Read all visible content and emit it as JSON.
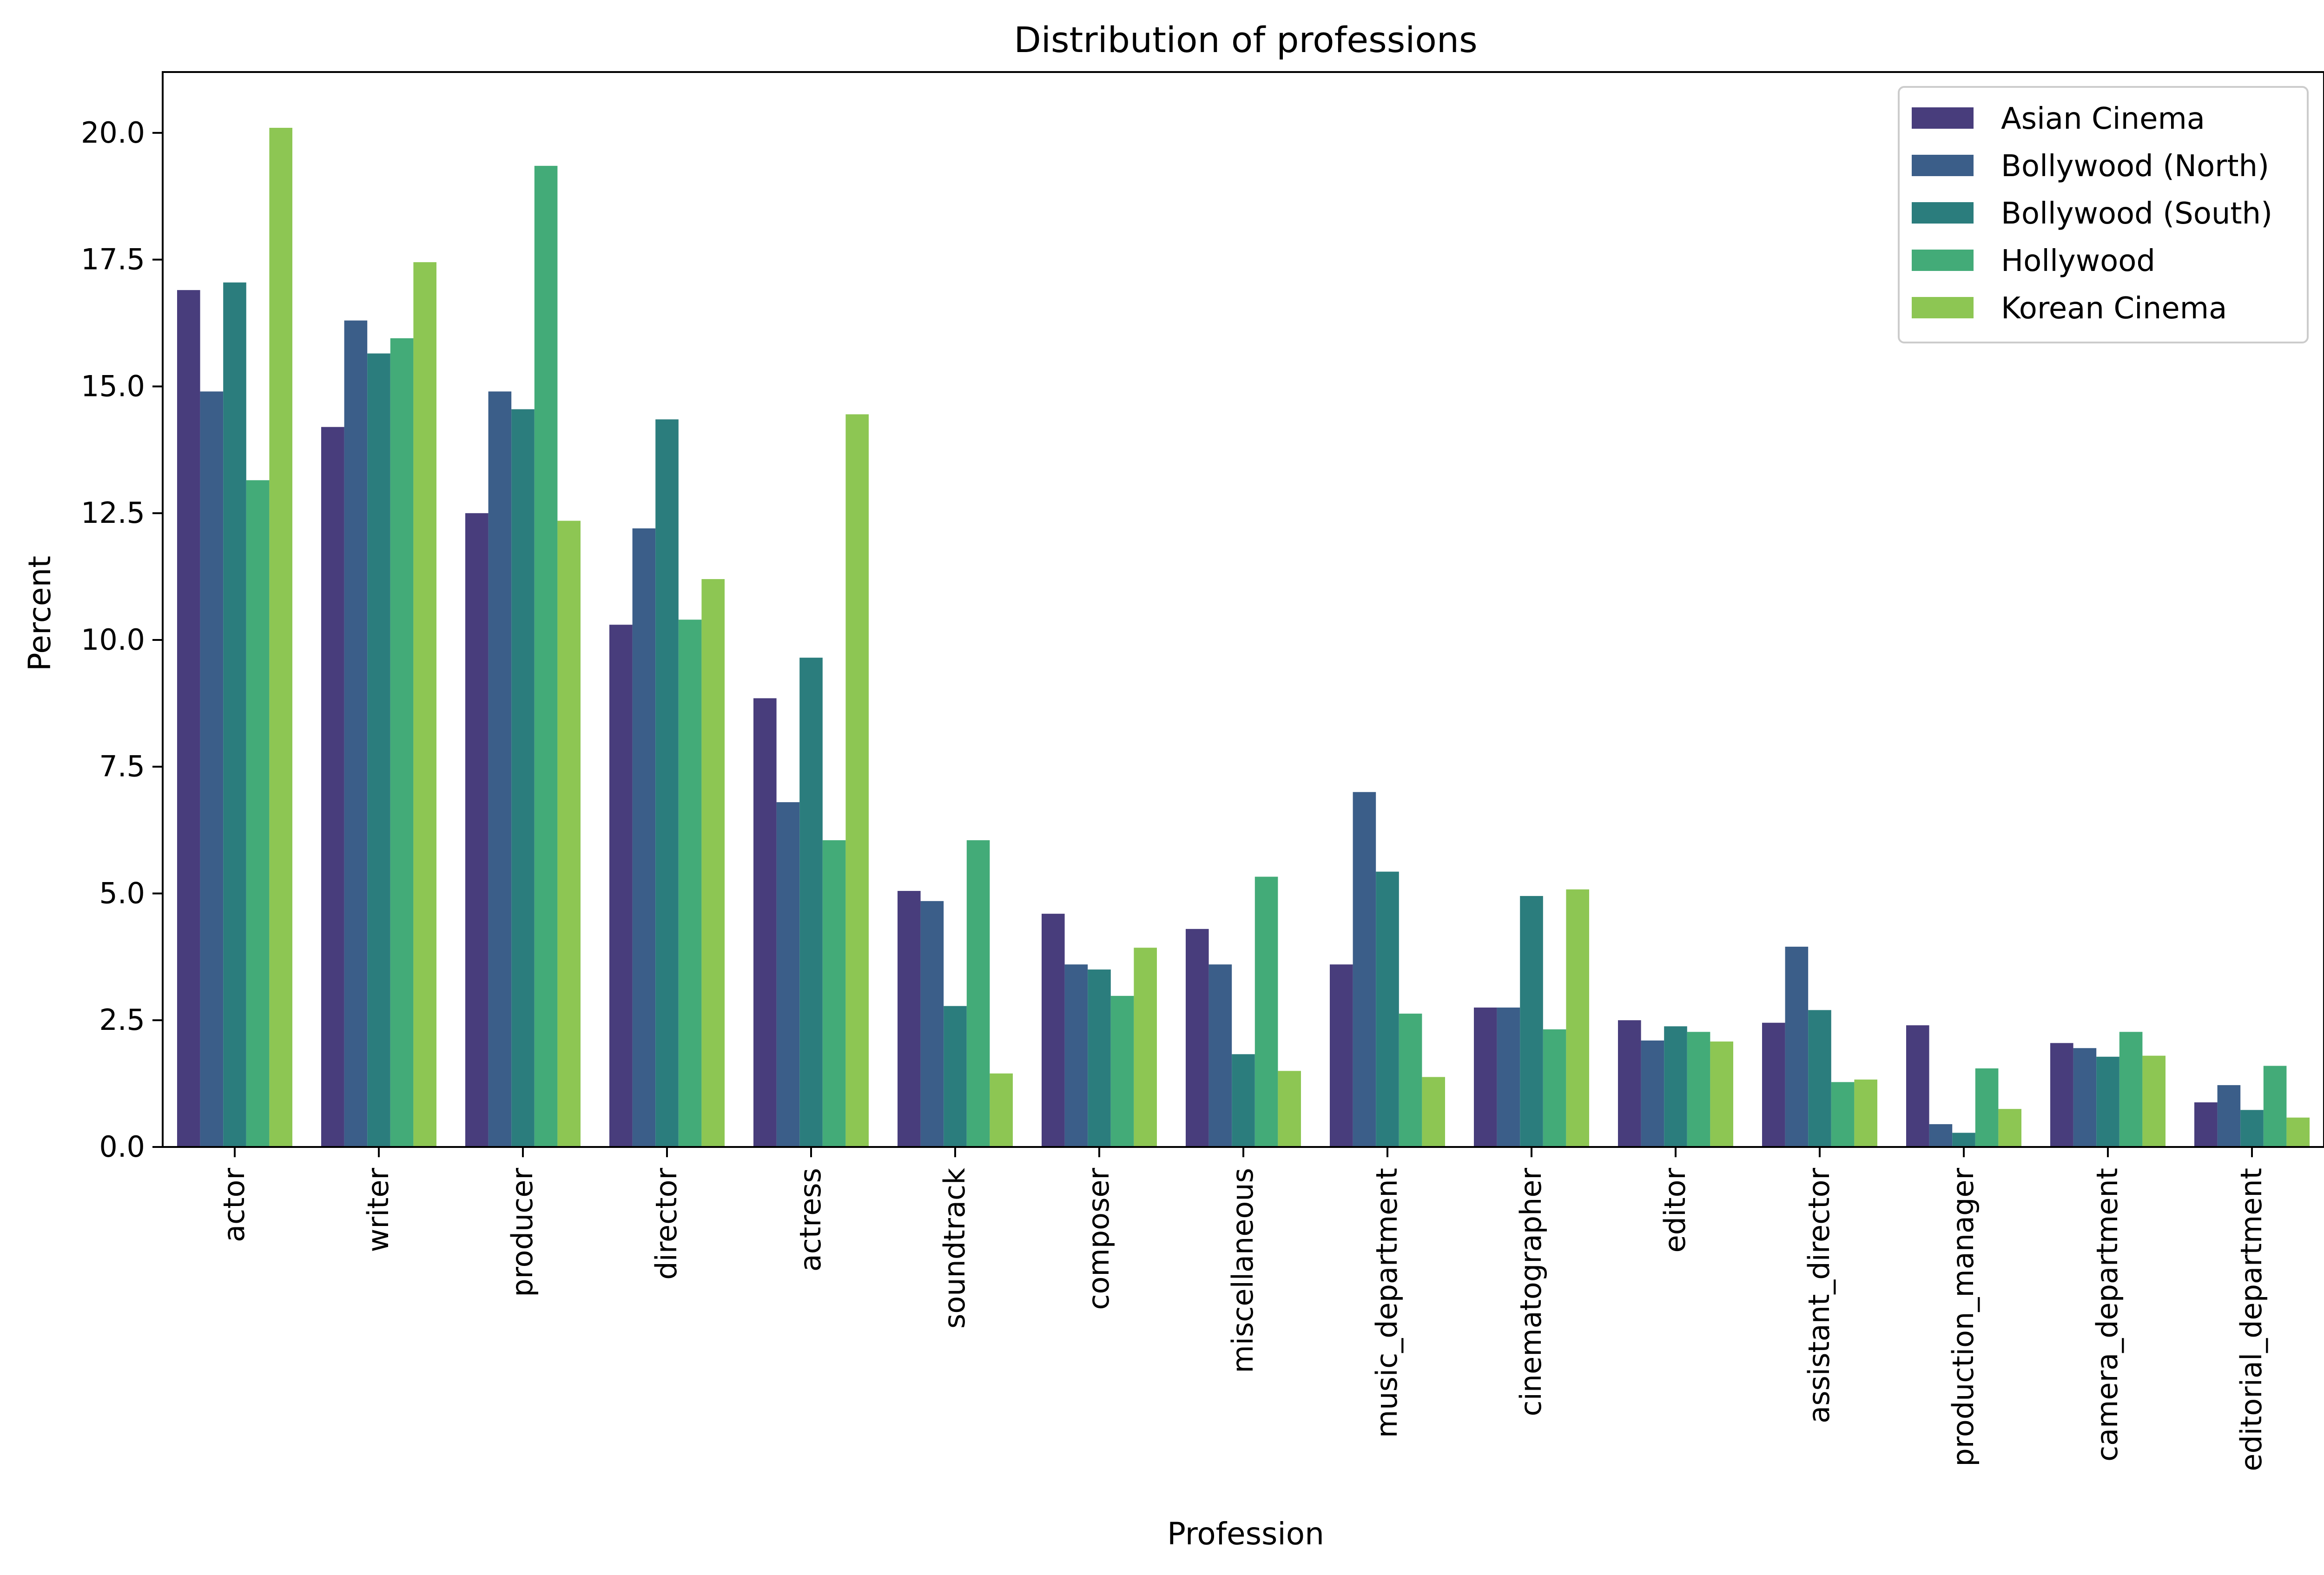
{
  "chart_data": {
    "type": "bar",
    "title": "Distribution of professions",
    "xlabel": "Profession",
    "ylabel": "Percent",
    "ylim": [
      0,
      21.2
    ],
    "yticks": [
      "0.0",
      "2.5",
      "5.0",
      "7.5",
      "10.0",
      "12.5",
      "15.0",
      "17.5",
      "20.0"
    ],
    "grid": false,
    "legend_position": "top-right",
    "categories": [
      "actor",
      "writer",
      "producer",
      "director",
      "actress",
      "soundtrack",
      "composer",
      "miscellaneous",
      "music_department",
      "cinematographer",
      "editor",
      "assistant_director",
      "production_manager",
      "camera_department",
      "editorial_department"
    ],
    "series": [
      {
        "name": "Asian Cinema",
        "color": "#483d7c",
        "values": [
          16.9,
          14.2,
          12.5,
          10.3,
          8.85,
          5.05,
          4.6,
          4.3,
          3.6,
          2.75,
          2.5,
          2.45,
          2.4,
          2.05,
          0.88
        ]
      },
      {
        "name": "Bollywood (North)",
        "color": "#3b5e89",
        "values": [
          14.9,
          16.3,
          14.9,
          12.2,
          6.8,
          4.85,
          3.6,
          3.6,
          7.0,
          2.75,
          2.1,
          3.95,
          0.45,
          1.95,
          1.22
        ]
      },
      {
        "name": "Bollywood (South)",
        "color": "#2b7d7d",
        "values": [
          17.05,
          15.65,
          14.55,
          14.35,
          9.65,
          2.78,
          3.5,
          1.83,
          5.43,
          4.95,
          2.38,
          2.7,
          0.28,
          1.78,
          0.73
        ]
      },
      {
        "name": "Hollywood",
        "color": "#43ab78",
        "values": [
          13.15,
          15.95,
          19.35,
          10.4,
          6.05,
          6.05,
          2.98,
          5.33,
          2.63,
          2.32,
          2.27,
          1.28,
          1.55,
          2.27,
          1.6
        ]
      },
      {
        "name": "Korean Cinema",
        "color": "#8dc653",
        "values": [
          20.1,
          17.45,
          12.35,
          11.2,
          14.45,
          1.45,
          3.93,
          1.5,
          1.38,
          5.08,
          2.08,
          1.33,
          0.75,
          1.8,
          0.58
        ]
      }
    ]
  }
}
